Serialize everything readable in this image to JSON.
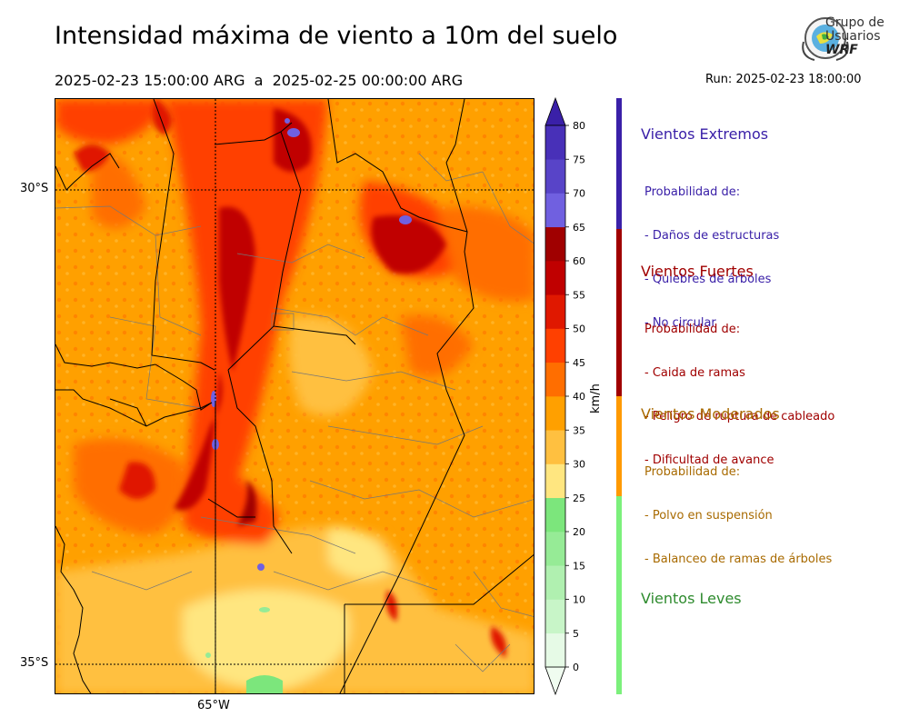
{
  "header": {
    "title": "Intensidad máxima de viento a 10m del suelo",
    "period": "2025-02-23 15:00:00 ARG  a  2025-02-25 00:00:00 ARG",
    "run": "Run: 2025-02-23 18:00:00"
  },
  "logo": {
    "line1": "Grupo de",
    "line2": "Usuarios",
    "line3": "WRF"
  },
  "map": {
    "lat_labels": [
      "30°S",
      "35°S"
    ],
    "lon_labels": [
      "65°W"
    ],
    "gridlines": "dotted"
  },
  "colorbar": {
    "unit": "km/h",
    "ticks": [
      "0",
      "5",
      "10",
      "15",
      "20",
      "25",
      "30",
      "35",
      "40",
      "45",
      "50",
      "55",
      "60",
      "65",
      "70",
      "75",
      "80"
    ],
    "colors": [
      "#e6fae6",
      "#c8f5c8",
      "#b0f0b0",
      "#96eb96",
      "#7ce67c",
      "#ffe680",
      "#ffc040",
      "#ffa000",
      "#ff6e00",
      "#ff4000",
      "#e01800",
      "#c00000",
      "#a00000",
      "#7060e0",
      "#5844c8",
      "#4830b8"
    ],
    "extend_low_color": "#f0fcf0",
    "extend_high_color": "#3a20a8"
  },
  "legend": {
    "categories": [
      {
        "title": "Vientos Extremos",
        "color": "#3a20a8",
        "heading": "Probabilidad de:",
        "items": [
          "- Daños de estructuras",
          "- Quiebres de árboles",
          "- No circular"
        ]
      },
      {
        "title": "Vientos Fuertes",
        "color": "#a00000",
        "heading": "Probabilidad de:",
        "items": [
          "- Caida de ramas",
          "- Peligro de ruptura de cableado",
          "- Dificultad de avance"
        ]
      },
      {
        "title": "Vientos Moderados",
        "color": "#ff9a00",
        "text_color": "#a86a00",
        "heading": "Probabilidad de:",
        "items": [
          "- Polvo en suspensión",
          "- Balanceo de ramas de árboles"
        ]
      },
      {
        "title": "Vientos Leves",
        "color": "#7cf07c",
        "text_color": "#2e8b2e"
      }
    ]
  }
}
